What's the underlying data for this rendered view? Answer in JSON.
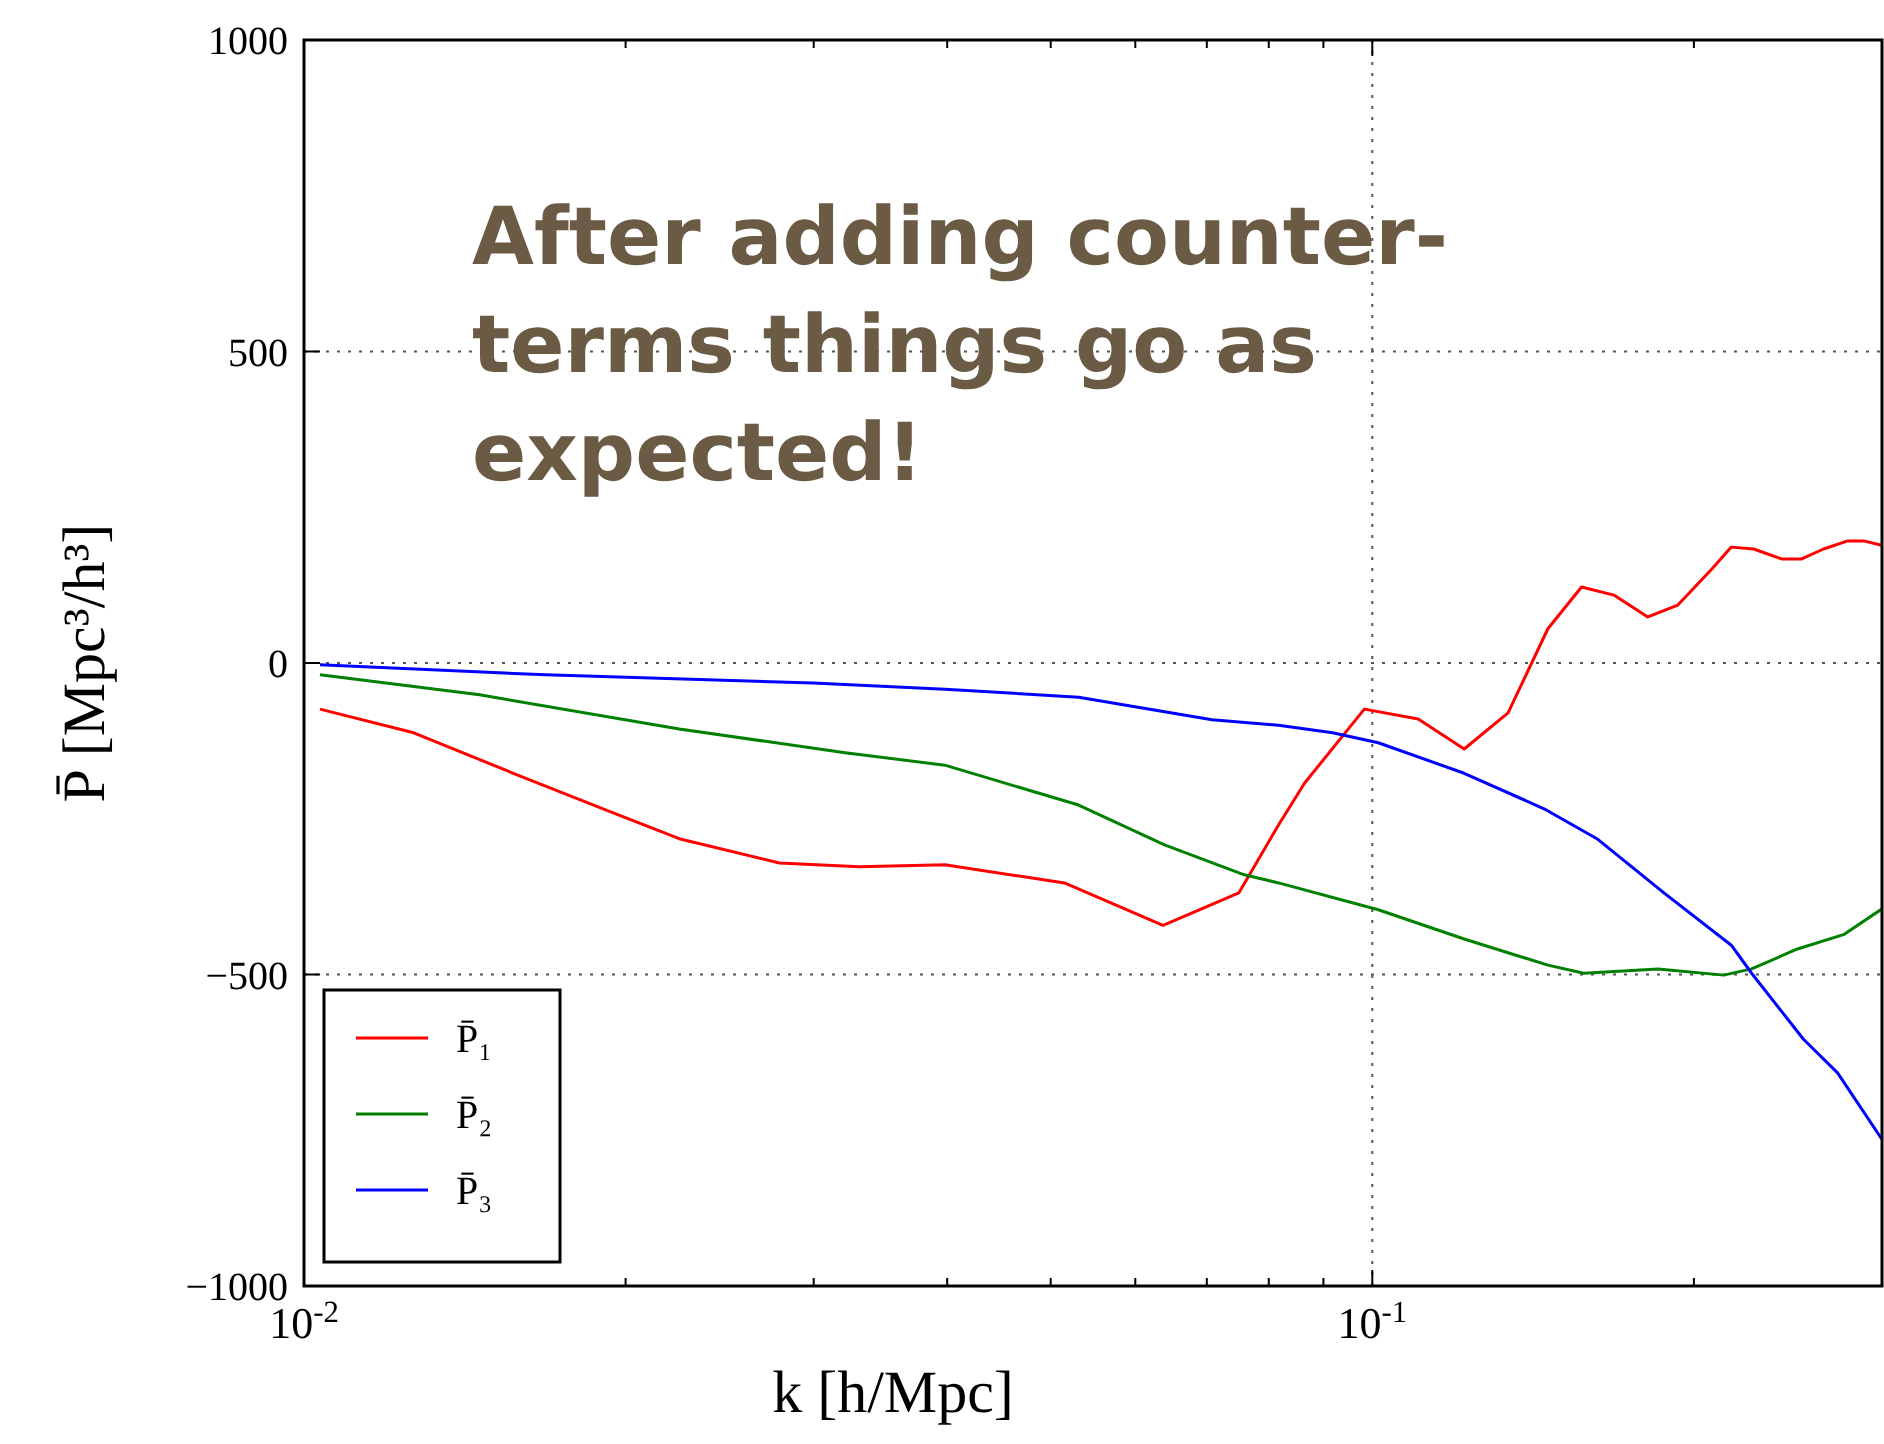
{
  "chart_data": {
    "type": "line",
    "xlabel": "k [h/Mpc]",
    "ylabel": "P̄ [Mpc³/h³]",
    "log": "x",
    "grid": true,
    "legend": "bottom left",
    "line_style": "solid",
    "marker": "none",
    "xlim": [
      0.01,
      0.3
    ],
    "ylim": [
      -1000,
      1000
    ],
    "xticks": [
      {
        "value": 0.01,
        "label": "10$^{-2}$"
      },
      {
        "value": 0.02,
        "label": null
      },
      {
        "value": 0.03,
        "label": null
      },
      {
        "value": 0.04,
        "label": null
      },
      {
        "value": 0.05,
        "label": null
      },
      {
        "value": 0.06,
        "label": null
      },
      {
        "value": 0.07,
        "label": null
      },
      {
        "value": 0.08,
        "label": null
      },
      {
        "value": 0.09,
        "label": null
      },
      {
        "value": 0.1,
        "label": "10$^{-1}$"
      },
      {
        "value": 0.2,
        "label": null
      }
    ],
    "yticks": [
      {
        "value": -1000,
        "label": "−1000"
      },
      {
        "value": -500,
        "label": "−500"
      },
      0,
      500,
      1000
    ],
    "annotations": [
      {
        "text": "After adding counter-terms things go as expected!"
      }
    ],
    "series": [
      {
        "name": "P̄₁",
        "color": "#ff0000",
        "x": [
          0.01035,
          0.01267,
          0.0157,
          0.0195,
          0.02245,
          0.02786,
          0.0331,
          0.0398,
          0.0515,
          0.0637,
          0.075,
          0.0817,
          0.0864,
          0.0983,
          0.1104,
          0.1219,
          0.134,
          0.146,
          0.157,
          0.1683,
          0.1811,
          0.1932,
          0.2079,
          0.2168,
          0.2275,
          0.2416,
          0.2523,
          0.2645,
          0.2786,
          0.2884,
          0.2998
        ],
        "values": [
          -74,
          -112,
          -177,
          -241,
          -282,
          -321,
          -327,
          -324,
          -353,
          -421,
          -369,
          -260,
          -193,
          -74,
          -90,
          -138,
          -80,
          55,
          122,
          109,
          74,
          93,
          151,
          186,
          183,
          167,
          167,
          183,
          196,
          196,
          189
        ]
      },
      {
        "name": "P̄₂",
        "color": "#008000",
        "x": [
          0.01035,
          0.0146,
          0.02245,
          0.0321,
          0.0398,
          0.0531,
          0.0639,
          0.0759,
          0.0817,
          0.1013,
          0.1219,
          0.146,
          0.1578,
          0.1851,
          0.2133,
          0.2265,
          0.25,
          0.2761,
          0.2998
        ],
        "values": [
          -19,
          -51,
          -106,
          -144,
          -164,
          -228,
          -292,
          -340,
          -353,
          -396,
          -443,
          -485,
          -498,
          -491,
          -501,
          -491,
          -459,
          -436,
          -395
        ]
      },
      {
        "name": "P̄₃",
        "color": "#0000ff",
        "x": [
          0.01035,
          0.01683,
          0.02997,
          0.0398,
          0.0531,
          0.0708,
          0.0817,
          0.0918,
          0.1013,
          0.1219,
          0.1448,
          0.1626,
          0.1875,
          0.2168,
          0.2265,
          0.2533,
          0.2726,
          0.2998
        ],
        "values": [
          -3,
          -19,
          -32,
          -42,
          -55,
          -91,
          -100,
          -112,
          -128,
          -177,
          -234,
          -283,
          -369,
          -453,
          -498,
          -604,
          -658,
          -764
        ]
      }
    ]
  }
}
